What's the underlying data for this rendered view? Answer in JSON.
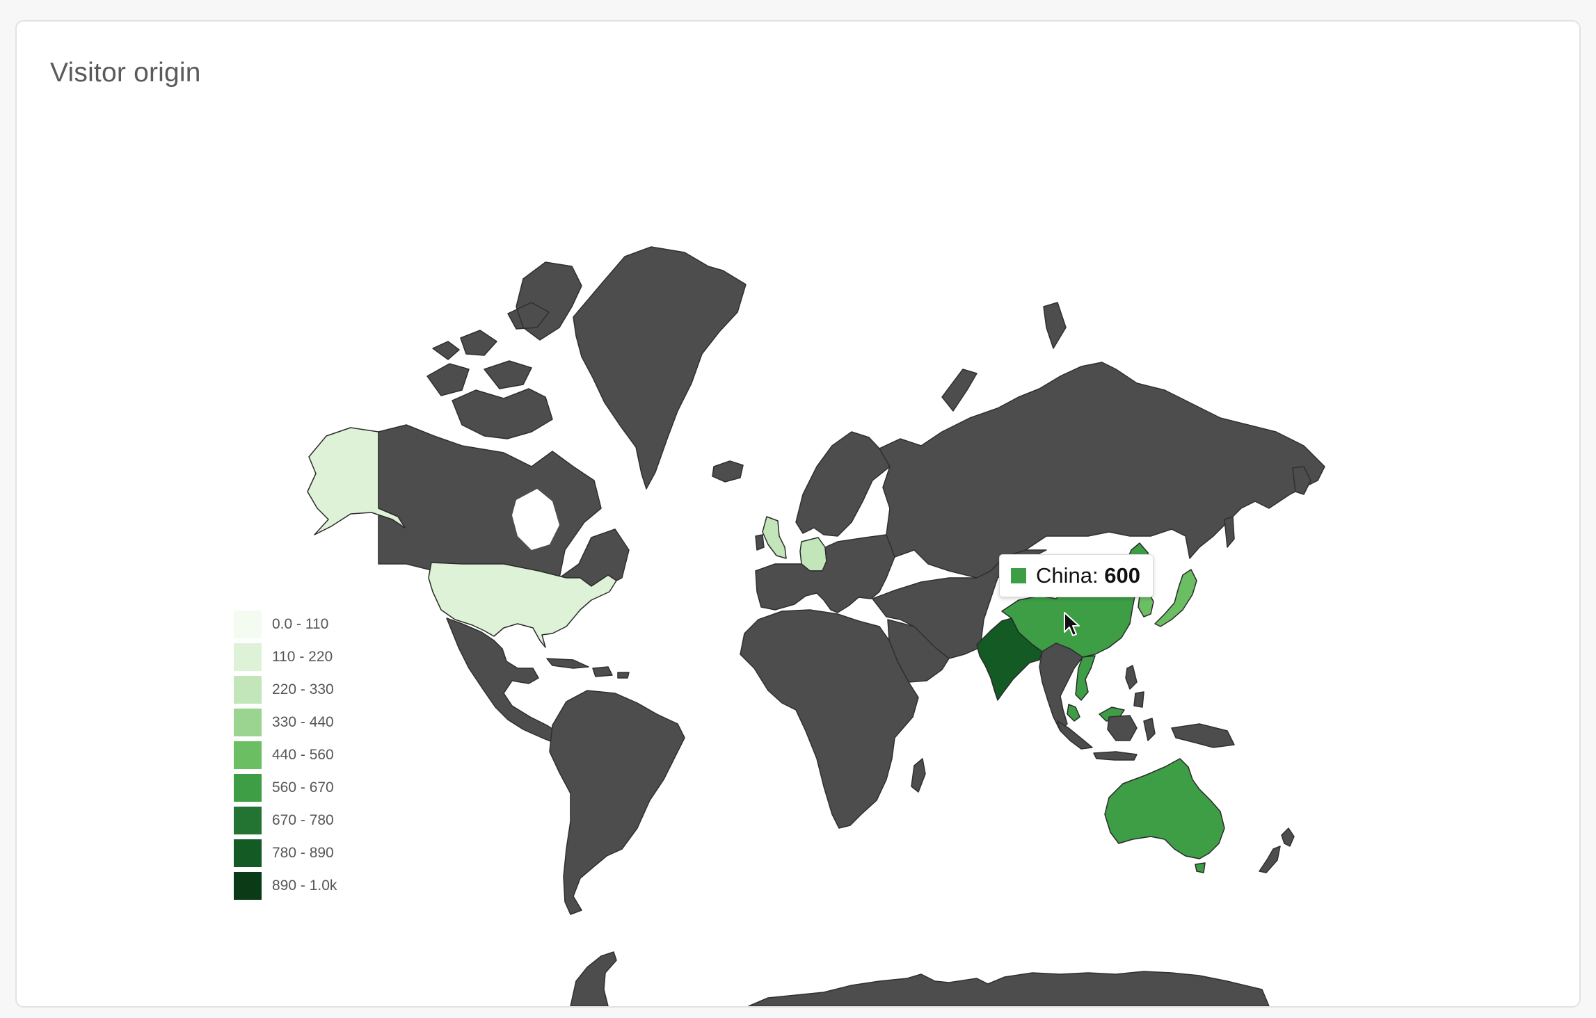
{
  "panel": {
    "title": "Visitor origin"
  },
  "colors": {
    "land_default": "#4d4d4d",
    "card_bg": "#ffffff",
    "page_bg": "#f7f7f7",
    "scale": [
      "#f4fbf1",
      "#def2d8",
      "#c2e6b9",
      "#9bd490",
      "#6cbe63",
      "#3d9e45",
      "#237432",
      "#135a24",
      "#0a3a16"
    ]
  },
  "legend": {
    "items": [
      {
        "label": "0.0 - 110"
      },
      {
        "label": "110 - 220"
      },
      {
        "label": "220 - 330"
      },
      {
        "label": "330 - 440"
      },
      {
        "label": "440 - 560"
      },
      {
        "label": "560 - 670"
      },
      {
        "label": "670 - 780"
      },
      {
        "label": "780 - 890"
      },
      {
        "label": "890 - 1.0k"
      }
    ]
  },
  "tooltip": {
    "country": "China",
    "separator": ": ",
    "value": "600"
  },
  "chart_data": {
    "type": "choropleth",
    "title": "Visitor origin",
    "legend_placement": "bottom-left",
    "bins": [
      "0.0 - 110",
      "110 - 220",
      "220 - 330",
      "330 - 440",
      "440 - 560",
      "560 - 670",
      "670 - 780",
      "780 - 890",
      "890 - 1.0k"
    ],
    "highlighted_regions": [
      {
        "region": "China",
        "value": 600,
        "bin": "560 - 670"
      },
      {
        "region": "India",
        "bin": "780 - 890"
      },
      {
        "region": "Australia",
        "bin": "560 - 670"
      },
      {
        "region": "Alaska",
        "bin": "110 - 220"
      },
      {
        "region": "United States",
        "bin": "110 - 220"
      },
      {
        "region": "United Kingdom",
        "bin": "220 - 330"
      },
      {
        "region": "Germany",
        "bin": "220 - 330"
      },
      {
        "region": "Japan",
        "bin": "440 - 560"
      },
      {
        "region": "North Korea",
        "bin": "440 - 560"
      },
      {
        "region": "South Korea",
        "bin": "440 - 560"
      },
      {
        "region": "Vietnam",
        "bin": "560 - 670"
      },
      {
        "region": "Malaysia",
        "bin": "560 - 670"
      }
    ]
  }
}
